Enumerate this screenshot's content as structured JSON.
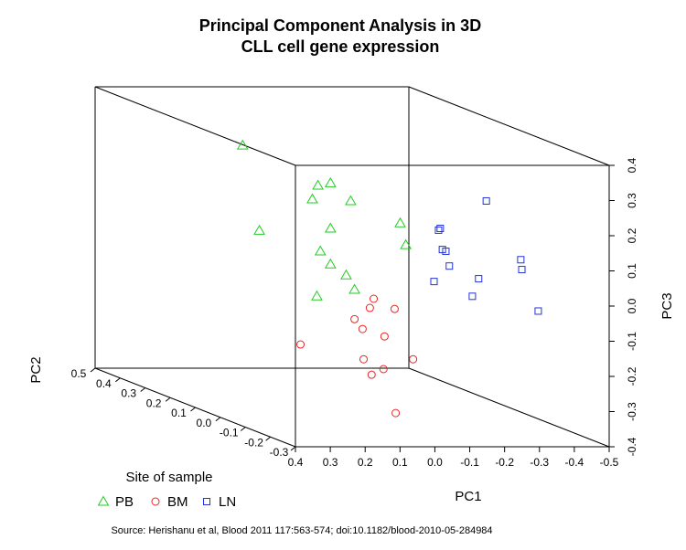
{
  "chart_data": {
    "type": "scatter3d",
    "title": "Principal Component Analysis in 3D",
    "subtitle": "CLL cell gene expression",
    "xlabel": "PC1",
    "ylabel": "PC3",
    "zlabel": "PC2",
    "xlim": [
      0.4,
      -0.5
    ],
    "xticks": [
      0.4,
      0.3,
      0.2,
      0.1,
      {
        "value": 0,
        "label": "0.0"
      },
      -0.1,
      -0.2,
      -0.3,
      -0.4,
      -0.5
    ],
    "ylim": [
      -0.4,
      0.4
    ],
    "yticks": [
      -0.4,
      -0.3,
      -0.2,
      -0.1,
      {
        "value": 0,
        "label": "0.0"
      },
      0.1,
      0.2,
      0.3,
      0.4
    ],
    "zlim": [
      -0.3,
      0.5
    ],
    "zticks": [
      -0.3,
      -0.2,
      -0.1,
      {
        "value": 0,
        "label": "0.0"
      },
      0.1,
      0.2,
      0.3,
      0.4,
      0.5
    ],
    "legend_title": "Site of sample",
    "caption": "Source: Herishanu et al, Blood 2011 117:563-574; doi:10.1182/blood-2010-05-284984",
    "series": [
      {
        "name": "PB",
        "color": "#22cc22",
        "marker": "triangle",
        "x": [
          0.336,
          0.12,
          0.084,
          0.136,
          0.026,
          -0.116,
          0.288,
          0.084,
          -0.132,
          0.113,
          0.084,
          0.039,
          0.015,
          0.123
        ],
        "y": [
          0.373,
          0.259,
          0.266,
          0.22,
          0.215,
          0.152,
          0.131,
          0.137,
          0.09,
          0.072,
          0.035,
          0.004,
          -0.037,
          -0.056
        ],
        "z": [
          0,
          0,
          0,
          0,
          0,
          0,
          0,
          0,
          0,
          0,
          0,
          0,
          0,
          0
        ]
      },
      {
        "name": "BM",
        "color": "#ee2222",
        "marker": "circle",
        "x": [
          -0.04,
          -0.029,
          -0.1,
          0.015,
          -0.008,
          -0.071,
          0.17,
          -0.011,
          -0.153,
          -0.068,
          -0.034,
          -0.103
        ],
        "y": [
          -0.063,
          -0.089,
          -0.092,
          -0.121,
          -0.149,
          -0.17,
          -0.193,
          -0.235,
          -0.235,
          -0.263,
          -0.279,
          -0.388
        ],
        "z": [
          0,
          0,
          0,
          0,
          0,
          0,
          0,
          0,
          0,
          0,
          0,
          0
        ]
      },
      {
        "name": "LN",
        "color": "#2233dd",
        "marker": "square",
        "x": [
          -0.363,
          -0.231,
          -0.226,
          -0.237,
          -0.247,
          -0.257,
          -0.462,
          -0.465,
          -0.341,
          -0.213,
          -0.323,
          -0.512
        ],
        "y": [
          0.215,
          0.137,
          0.132,
          0.077,
          0.072,
          0.03,
          0.048,
          0.02,
          -0.006,
          -0.014,
          -0.056,
          -0.098
        ],
        "z": [
          0,
          0,
          0,
          0,
          0,
          0,
          0,
          0,
          0,
          0,
          0,
          0
        ]
      }
    ]
  }
}
